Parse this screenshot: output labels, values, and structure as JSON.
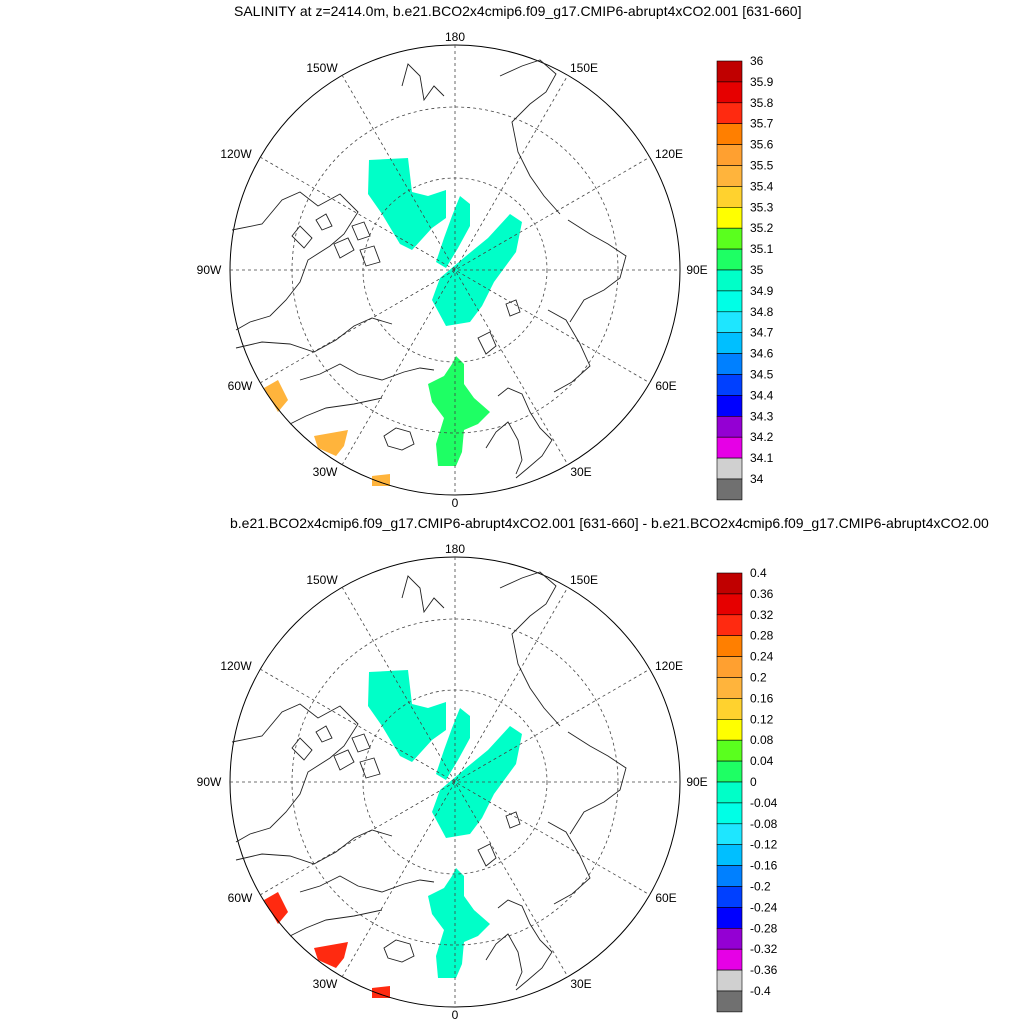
{
  "panels": [
    {
      "title": "SALINITY at z=2414.0m, b.e21.BCO2x4cmip6.f09_g17.CMIP6-abrupt4xCO2.001 [631-660]",
      "lon_labels": {
        "deg180": "180",
        "deg150W": "150W",
        "deg150E": "150E",
        "deg120W": "120W",
        "deg120E": "120E",
        "deg90W": "90W",
        "deg90E": "90E",
        "deg60W": "60W",
        "deg60E": "60E",
        "deg30W": "30W",
        "deg30E": "30E",
        "deg0": "0"
      },
      "colorbar": {
        "labels": [
          "36",
          "35.9",
          "35.8",
          "35.7",
          "35.6",
          "35.5",
          "35.4",
          "35.3",
          "35.2",
          "35.1",
          "35",
          "34.9",
          "34.8",
          "34.7",
          "34.6",
          "34.5",
          "34.4",
          "34.3",
          "34.2",
          "34.1",
          "34"
        ],
        "colors": [
          "#c00000",
          "#e60000",
          "#ff2a10",
          "#ff7f00",
          "#ffa030",
          "#ffb43c",
          "#ffd22e",
          "#ffff00",
          "#5aff1e",
          "#1eff64",
          "#00ffc8",
          "#00ffe6",
          "#1ee6ff",
          "#00bfff",
          "#0080ff",
          "#0040ff",
          "#0000ff",
          "#9400d3",
          "#e600e6",
          "#d0d0d0",
          "#707070"
        ]
      },
      "field_colors": {
        "main": "#00ffc8",
        "atlantic": "#1eff64",
        "edge": "#ffb43c"
      }
    },
    {
      "title": "b.e21.BCO2x4cmip6.f09_g17.CMIP6-abrupt4xCO2.001 [631-660] - b.e21.BCO2x4cmip6.f09_g17.CMIP6-abrupt4xCO2.00",
      "lon_labels": {
        "deg180": "180",
        "deg150W": "150W",
        "deg150E": "150E",
        "deg120W": "120W",
        "deg120E": "120E",
        "deg90W": "90W",
        "deg90E": "90E",
        "deg60W": "60W",
        "deg60E": "60E",
        "deg30W": "30W",
        "deg30E": "30E",
        "deg0": "0"
      },
      "colorbar": {
        "labels": [
          "0.4",
          "0.36",
          "0.32",
          "0.28",
          "0.24",
          "0.2",
          "0.16",
          "0.12",
          "0.08",
          "0.04",
          "0",
          "-0.04",
          "-0.08",
          "-0.12",
          "-0.16",
          "-0.2",
          "-0.24",
          "-0.28",
          "-0.32",
          "-0.36",
          "-0.4"
        ],
        "colors": [
          "#c00000",
          "#e60000",
          "#ff2a10",
          "#ff7f00",
          "#ffa030",
          "#ffb43c",
          "#ffd22e",
          "#ffff00",
          "#5aff1e",
          "#1eff64",
          "#00ffc8",
          "#00ffe6",
          "#1ee6ff",
          "#00bfff",
          "#0080ff",
          "#0040ff",
          "#0000ff",
          "#9400d3",
          "#e600e6",
          "#d0d0d0",
          "#707070"
        ]
      },
      "field_colors": {
        "main": "#00ffc8",
        "atlantic": "#00ffc8",
        "edge": "#ff2a10"
      }
    }
  ]
}
